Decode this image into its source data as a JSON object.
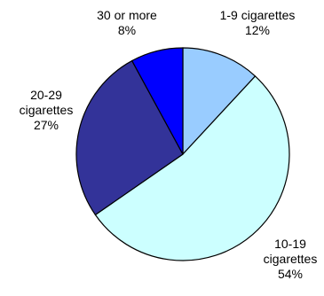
{
  "chart_data": {
    "type": "pie",
    "title": "",
    "slices": [
      {
        "label": "1-9 cigarettes",
        "label_lines": [
          "1-9 cigarettes"
        ],
        "percent_label": "12%",
        "value": 12,
        "color": "#99ccff"
      },
      {
        "label": "10-19 cigarettes",
        "label_lines": [
          "10-19",
          "cigarettes"
        ],
        "percent_label": "54%",
        "value": 54,
        "color": "#ccffff"
      },
      {
        "label": "20-29 cigarettes",
        "label_lines": [
          "20-29",
          "cigarettes"
        ],
        "percent_label": "27%",
        "value": 27,
        "color": "#333399"
      },
      {
        "label": "30 or more",
        "label_lines": [
          "30 or more"
        ],
        "percent_label": "8%",
        "value": 8,
        "color": "#0000ff"
      }
    ],
    "start": "12 o'clock",
    "direction": "clockwise",
    "legend": "none"
  }
}
